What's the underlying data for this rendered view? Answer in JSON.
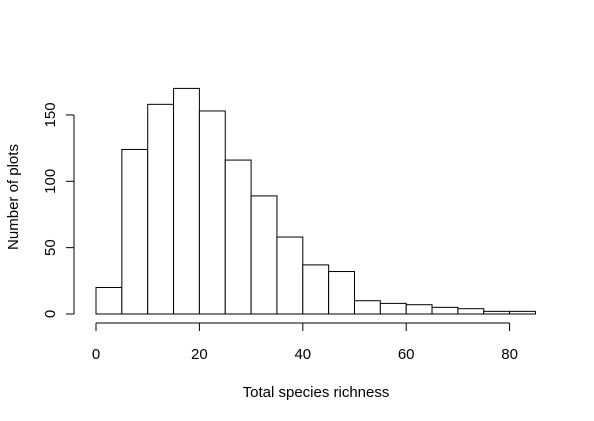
{
  "chart_data": {
    "type": "histogram",
    "title": "",
    "xlabel": "Total species richness",
    "ylabel": "Number of plots",
    "bin_width": 5,
    "bins": [
      {
        "start": 0,
        "end": 5,
        "count": 20
      },
      {
        "start": 5,
        "end": 10,
        "count": 124
      },
      {
        "start": 10,
        "end": 15,
        "count": 158
      },
      {
        "start": 15,
        "end": 20,
        "count": 170
      },
      {
        "start": 20,
        "end": 25,
        "count": 153
      },
      {
        "start": 25,
        "end": 30,
        "count": 116
      },
      {
        "start": 30,
        "end": 35,
        "count": 89
      },
      {
        "start": 35,
        "end": 40,
        "count": 58
      },
      {
        "start": 40,
        "end": 45,
        "count": 37
      },
      {
        "start": 45,
        "end": 50,
        "count": 32
      },
      {
        "start": 50,
        "end": 55,
        "count": 10
      },
      {
        "start": 55,
        "end": 60,
        "count": 8
      },
      {
        "start": 60,
        "end": 65,
        "count": 7
      },
      {
        "start": 65,
        "end": 70,
        "count": 5
      },
      {
        "start": 70,
        "end": 75,
        "count": 4
      },
      {
        "start": 75,
        "end": 80,
        "count": 2
      },
      {
        "start": 80,
        "end": 85,
        "count": 2
      }
    ],
    "x_ticks": [
      {
        "value": 0,
        "label": "0"
      },
      {
        "value": 20,
        "label": "20"
      },
      {
        "value": 40,
        "label": "40"
      },
      {
        "value": 60,
        "label": "60"
      },
      {
        "value": 80,
        "label": "80"
      }
    ],
    "y_ticks": [
      {
        "value": 0,
        "label": "0"
      },
      {
        "value": 50,
        "label": "50"
      },
      {
        "value": 100,
        "label": "100"
      },
      {
        "value": 150,
        "label": "150"
      }
    ],
    "xlim": [
      0,
      85
    ],
    "ylim": [
      0,
      150
    ],
    "grid": false,
    "legend": "none",
    "bar_fill": "#ffffff",
    "bar_stroke": "#000000"
  }
}
